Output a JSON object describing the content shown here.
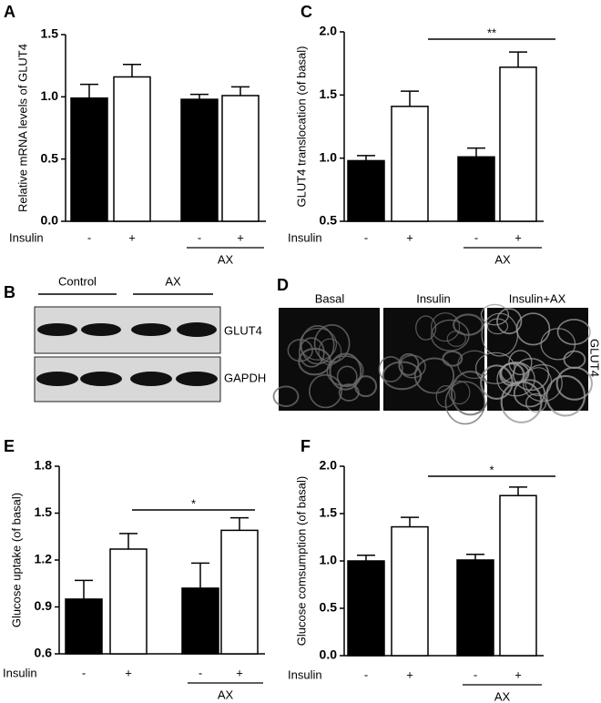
{
  "chart_data": [
    {
      "type": "bar",
      "label": "A",
      "ylabel": "Relative mRNA levels of GLUT4",
      "xlabel": "Insulin",
      "group_label": "AX",
      "categories": [
        "-",
        "+",
        "-",
        "+"
      ],
      "values": [
        0.99,
        1.16,
        0.98,
        1.01
      ],
      "errors": [
        0.11,
        0.1,
        0.04,
        0.07
      ],
      "colors": [
        "#000000",
        "#ffffff",
        "#000000",
        "#ffffff"
      ],
      "ylim": [
        0,
        1.5
      ],
      "yticks": [
        {
          "value": 0,
          "label": "0.0"
        },
        0.5,
        {
          "value": 1,
          "label": "1.0"
        },
        1.5
      ]
    },
    {
      "type": "bar",
      "label": "C",
      "ylabel": "GLUT4 translocation (of basal)",
      "xlabel": "Insulin",
      "group_label": "AX",
      "categories": [
        "-",
        "+",
        "-",
        "+"
      ],
      "values": [
        0.98,
        1.41,
        1.01,
        1.72
      ],
      "errors": [
        0.04,
        0.12,
        0.07,
        0.12
      ],
      "colors": [
        "#000000",
        "#ffffff",
        "#000000",
        "#ffffff"
      ],
      "ylim": [
        0.5,
        2
      ],
      "yticks": [
        0.5,
        {
          "value": 1,
          "label": "1.0"
        },
        1.5,
        {
          "value": 2,
          "label": "2.0"
        }
      ],
      "annotations": [
        "**"
      ]
    },
    {
      "type": "bar",
      "label": "E",
      "ylabel": "Glucose uptake (of basal)",
      "xlabel": "Insulin",
      "group_label": "AX",
      "categories": [
        "-",
        "+",
        "-",
        "+"
      ],
      "values": [
        0.95,
        1.27,
        1.02,
        1.39
      ],
      "errors": [
        0.12,
        0.1,
        0.16,
        0.08
      ],
      "colors": [
        "#000000",
        "#ffffff",
        "#000000",
        "#ffffff"
      ],
      "ylim": [
        0.6,
        1.8
      ],
      "yticks": [
        0.6,
        0.9,
        1.2,
        1.5,
        1.8
      ],
      "annotations": [
        "*"
      ]
    },
    {
      "type": "bar",
      "label": "F",
      "ylabel": "Glucose comsumption (of basal)",
      "xlabel": "Insulin",
      "group_label": "AX",
      "categories": [
        "-",
        "+",
        "-",
        "+"
      ],
      "values": [
        1.0,
        1.36,
        1.01,
        1.69
      ],
      "errors": [
        0.06,
        0.1,
        0.06,
        0.09
      ],
      "colors": [
        "#000000",
        "#ffffff",
        "#000000",
        "#ffffff"
      ],
      "ylim": [
        0,
        2
      ],
      "yticks": [
        {
          "value": 0,
          "label": "0.0"
        },
        0.5,
        {
          "value": 1,
          "label": "1.0"
        },
        1.5,
        {
          "value": 2,
          "label": "2.0"
        }
      ],
      "annotations": [
        "*"
      ]
    }
  ],
  "blot": {
    "label": "B",
    "groups": [
      "Control",
      "AX"
    ],
    "rows": [
      "GLUT4",
      "GAPDH"
    ]
  },
  "images": {
    "label": "D",
    "columns": [
      "Basal",
      "Insulin",
      "Insulin+AX"
    ],
    "stain": "GLUT4"
  }
}
